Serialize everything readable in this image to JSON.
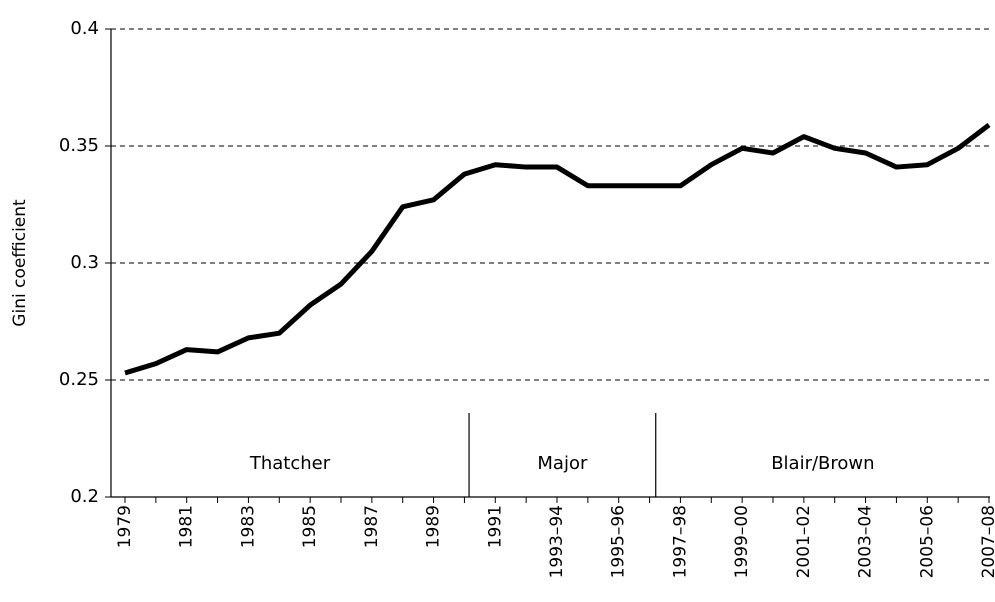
{
  "chart_data": {
    "type": "line",
    "y_label": "Gini coefficient",
    "categories": [
      "1979",
      null,
      "1981",
      null,
      "1983",
      null,
      "1985",
      null,
      "1987",
      null,
      "1989",
      null,
      "1991",
      null,
      "1993–94",
      null,
      "1995–96",
      null,
      "1997–98",
      null,
      "1999–00",
      null,
      "2001–02",
      null,
      "2003–04",
      null,
      "2005–06",
      null,
      "2007–08"
    ],
    "values": [
      0.253,
      0.257,
      0.263,
      0.262,
      0.268,
      0.27,
      0.282,
      0.291,
      0.305,
      0.324,
      0.327,
      0.338,
      0.342,
      0.341,
      0.341,
      0.333,
      0.333,
      0.333,
      0.333,
      0.342,
      0.349,
      0.347,
      0.354,
      0.349,
      0.347,
      0.341,
      0.342,
      0.349,
      0.359
    ],
    "color": "#000000",
    "ylim": [
      0.2,
      0.4
    ],
    "yticks": [
      0.2,
      0.25,
      0.3,
      0.35,
      0.4
    ],
    "grid": true,
    "periods": [
      {
        "label": "Thatcher"
      },
      {
        "label": "Major"
      },
      {
        "label": "Blair/Brown"
      }
    ]
  }
}
